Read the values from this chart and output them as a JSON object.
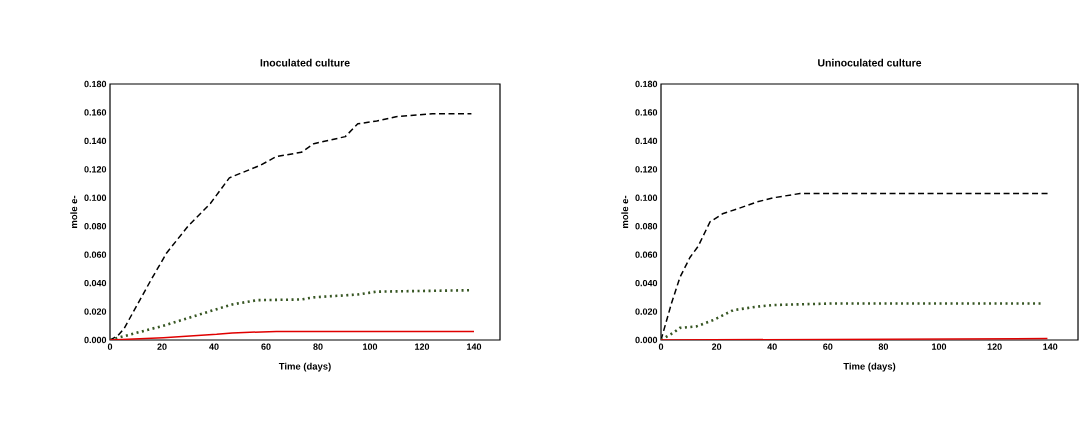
{
  "chart_data": [
    {
      "type": "line",
      "title": "Inoculated culture",
      "xlabel": "Time (days)",
      "ylabel": "mole e-",
      "xlim": [
        0,
        150
      ],
      "ylim": [
        0,
        0.18
      ],
      "xticks": [
        0,
        20,
        40,
        60,
        80,
        100,
        120,
        140
      ],
      "yticks": [
        {
          "value": 0,
          "label": "0.000"
        },
        {
          "value": 0.02,
          "label": "0.020"
        },
        {
          "value": 0.04,
          "label": "0.040"
        },
        {
          "value": 0.06,
          "label": "0.060"
        },
        {
          "value": 0.08,
          "label": "0.080"
        },
        {
          "value": 0.1,
          "label": "0.100"
        },
        {
          "value": 0.12,
          "label": "0.120"
        },
        {
          "value": 0.14,
          "label": "0.140"
        },
        {
          "value": 0.16,
          "label": "0.160"
        },
        {
          "value": 0.18,
          "label": "0.180"
        }
      ],
      "grid": false,
      "marker": "none",
      "series": [
        {
          "color": "#000000",
          "line_style": "dashed",
          "x": [
            0,
            3,
            5.4,
            15.7,
            21.7,
            30,
            38.6,
            45.9,
            58,
            64,
            73.6,
            78.4,
            90.5,
            95.3,
            102.6,
            110,
            124,
            139
          ],
          "values": [
            0,
            0.003,
            0.008,
            0.042,
            0.061,
            0.08,
            0.096,
            0.114,
            0.123,
            0.129,
            0.132,
            0.138,
            0.143,
            0.152,
            0.154,
            0.157,
            0.159,
            0.159
          ]
        },
        {
          "color": "#375623",
          "line_style": "dotted",
          "x": [
            0,
            6,
            20.5,
            39.8,
            47,
            56.7,
            73.6,
            78.4,
            95.3,
            102.6,
            139
          ],
          "values": [
            0,
            0.003,
            0.01,
            0.021,
            0.025,
            0.028,
            0.0285,
            0.03,
            0.032,
            0.034,
            0.035
          ]
        },
        {
          "color": "#e00000",
          "line_style": "solid",
          "x": [
            0,
            20.5,
            41,
            47,
            64,
            140
          ],
          "values": [
            0,
            0.0016,
            0.004,
            0.005,
            0.006,
            0.006
          ]
        }
      ]
    },
    {
      "type": "line",
      "title": "Uninoculated culture",
      "xlabel": "Time (days)",
      "ylabel": "mole e-",
      "xlim": [
        0,
        150
      ],
      "ylim": [
        0,
        0.18
      ],
      "xticks": [
        0,
        20,
        40,
        60,
        80,
        100,
        120,
        140
      ],
      "yticks": [
        {
          "value": 0,
          "label": "0.000"
        },
        {
          "value": 0.02,
          "label": "0.020"
        },
        {
          "value": 0.04,
          "label": "0.040"
        },
        {
          "value": 0.06,
          "label": "0.060"
        },
        {
          "value": 0.08,
          "label": "0.080"
        },
        {
          "value": 0.1,
          "label": "0.100"
        },
        {
          "value": 0.12,
          "label": "0.120"
        },
        {
          "value": 0.14,
          "label": "0.140"
        },
        {
          "value": 0.16,
          "label": "0.160"
        },
        {
          "value": 0.18,
          "label": "0.180"
        }
      ],
      "grid": false,
      "marker": "none",
      "series": [
        {
          "color": "#000000",
          "line_style": "dashed",
          "x": [
            0,
            3.8,
            6.8,
            10.4,
            13.4,
            17.6,
            22.4,
            27.2,
            34.4,
            40.4,
            50,
            139.4
          ],
          "values": [
            0,
            0.026,
            0.044,
            0.058,
            0.066,
            0.083,
            0.089,
            0.092,
            0.097,
            0.1,
            0.103,
            0.103
          ]
        },
        {
          "color": "#375623",
          "line_style": "dotted",
          "x": [
            0,
            4.4,
            6.8,
            12.8,
            18.8,
            26,
            34.4,
            40.4,
            62,
            137.6
          ],
          "values": [
            0,
            0.005,
            0.0085,
            0.0096,
            0.014,
            0.021,
            0.0234,
            0.0246,
            0.0257,
            0.0257
          ]
        },
        {
          "color": "#e00000",
          "line_style": "solid",
          "x": [
            0,
            139
          ],
          "values": [
            0,
            0.001
          ]
        }
      ]
    }
  ]
}
